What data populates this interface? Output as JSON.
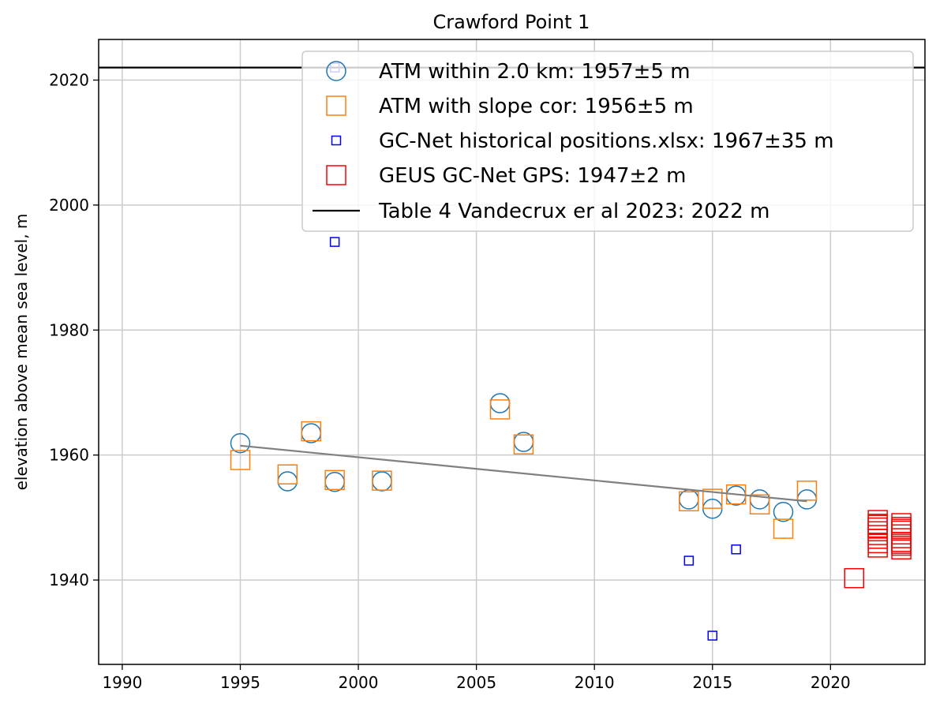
{
  "chart_data": {
    "type": "scatter",
    "title": "Crawford Point 1",
    "xlabel": "",
    "ylabel": "elevation above mean sea level, m",
    "xlim": [
      1989,
      2024
    ],
    "ylim": [
      1926.5,
      2026.5
    ],
    "xticks": [
      1990,
      1995,
      2000,
      2005,
      2010,
      2015,
      2020
    ],
    "yticks": [
      1940,
      1960,
      1980,
      2000,
      2020
    ],
    "grid": true,
    "legend_position": "top-right",
    "colors": {
      "atm": "#1f77b4",
      "atm_slope": "#ff7f0e",
      "gcnet": "#0000ff",
      "geus": "#ff0000",
      "table4": "#000000",
      "trend": "#808080",
      "grid": "#cccccc"
    },
    "series": [
      {
        "name": "ATM within 2.0 km: 1957±5 m",
        "marker": "circle",
        "color": "#1f77b4",
        "x": [
          1995,
          1997,
          1998,
          1999,
          2001,
          2006,
          2007,
          2014,
          2015,
          2016,
          2017,
          2018,
          2019
        ],
        "y": [
          1961.9,
          1955.8,
          1963.5,
          1955.7,
          1955.8,
          1968.3,
          1962.1,
          1952.9,
          1951.4,
          1953.5,
          1952.9,
          1950.9,
          1952.9
        ]
      },
      {
        "name": "ATM with slope cor: 1956±5 m",
        "marker": "square-large",
        "color": "#ff7f0e",
        "x": [
          1995,
          1997,
          1998,
          1999,
          2001,
          2006,
          2007,
          2014,
          2015,
          2016,
          2017,
          2018,
          2019
        ],
        "y": [
          1959.2,
          1956.9,
          1963.8,
          1956.0,
          1955.9,
          1967.3,
          1961.7,
          1952.6,
          1953.0,
          1953.7,
          1952.1,
          1948.2,
          1954.3
        ]
      },
      {
        "name": "GC-Net historical positions.xlsx: 1967±35 m",
        "marker": "square-small",
        "color": "#0000ff",
        "x": [
          1999,
          1999,
          2014,
          2015,
          2016
        ],
        "y": [
          2022.0,
          1994.1,
          1943.1,
          1931.1,
          1944.9
        ]
      },
      {
        "name": "GEUS GC-Net GPS: 1947±2 m",
        "marker": "square-large",
        "color": "#ff0000",
        "x": [
          2021,
          2022,
          2022,
          2022,
          2022,
          2022,
          2022,
          2022,
          2022,
          2022,
          2023,
          2023,
          2023,
          2023,
          2023,
          2023,
          2023,
          2023,
          2023,
          2023
        ],
        "y": [
          1940.3,
          1945.2,
          1945.9,
          1946.6,
          1947.2,
          1947.8,
          1948.4,
          1949.0,
          1949.6,
          1948.8,
          1944.9,
          1945.5,
          1946.1,
          1946.7,
          1947.3,
          1947.9,
          1948.5,
          1949.1,
          1948.2,
          1945.8
        ]
      },
      {
        "name": "Table 4 Vandecrux er al 2023: 2022 m",
        "marker": "hline",
        "color": "#000000",
        "y": 2022
      }
    ],
    "trend_line": {
      "color": "#808080",
      "x": [
        1995,
        2019
      ],
      "y": [
        1961.5,
        1952.6
      ]
    }
  }
}
